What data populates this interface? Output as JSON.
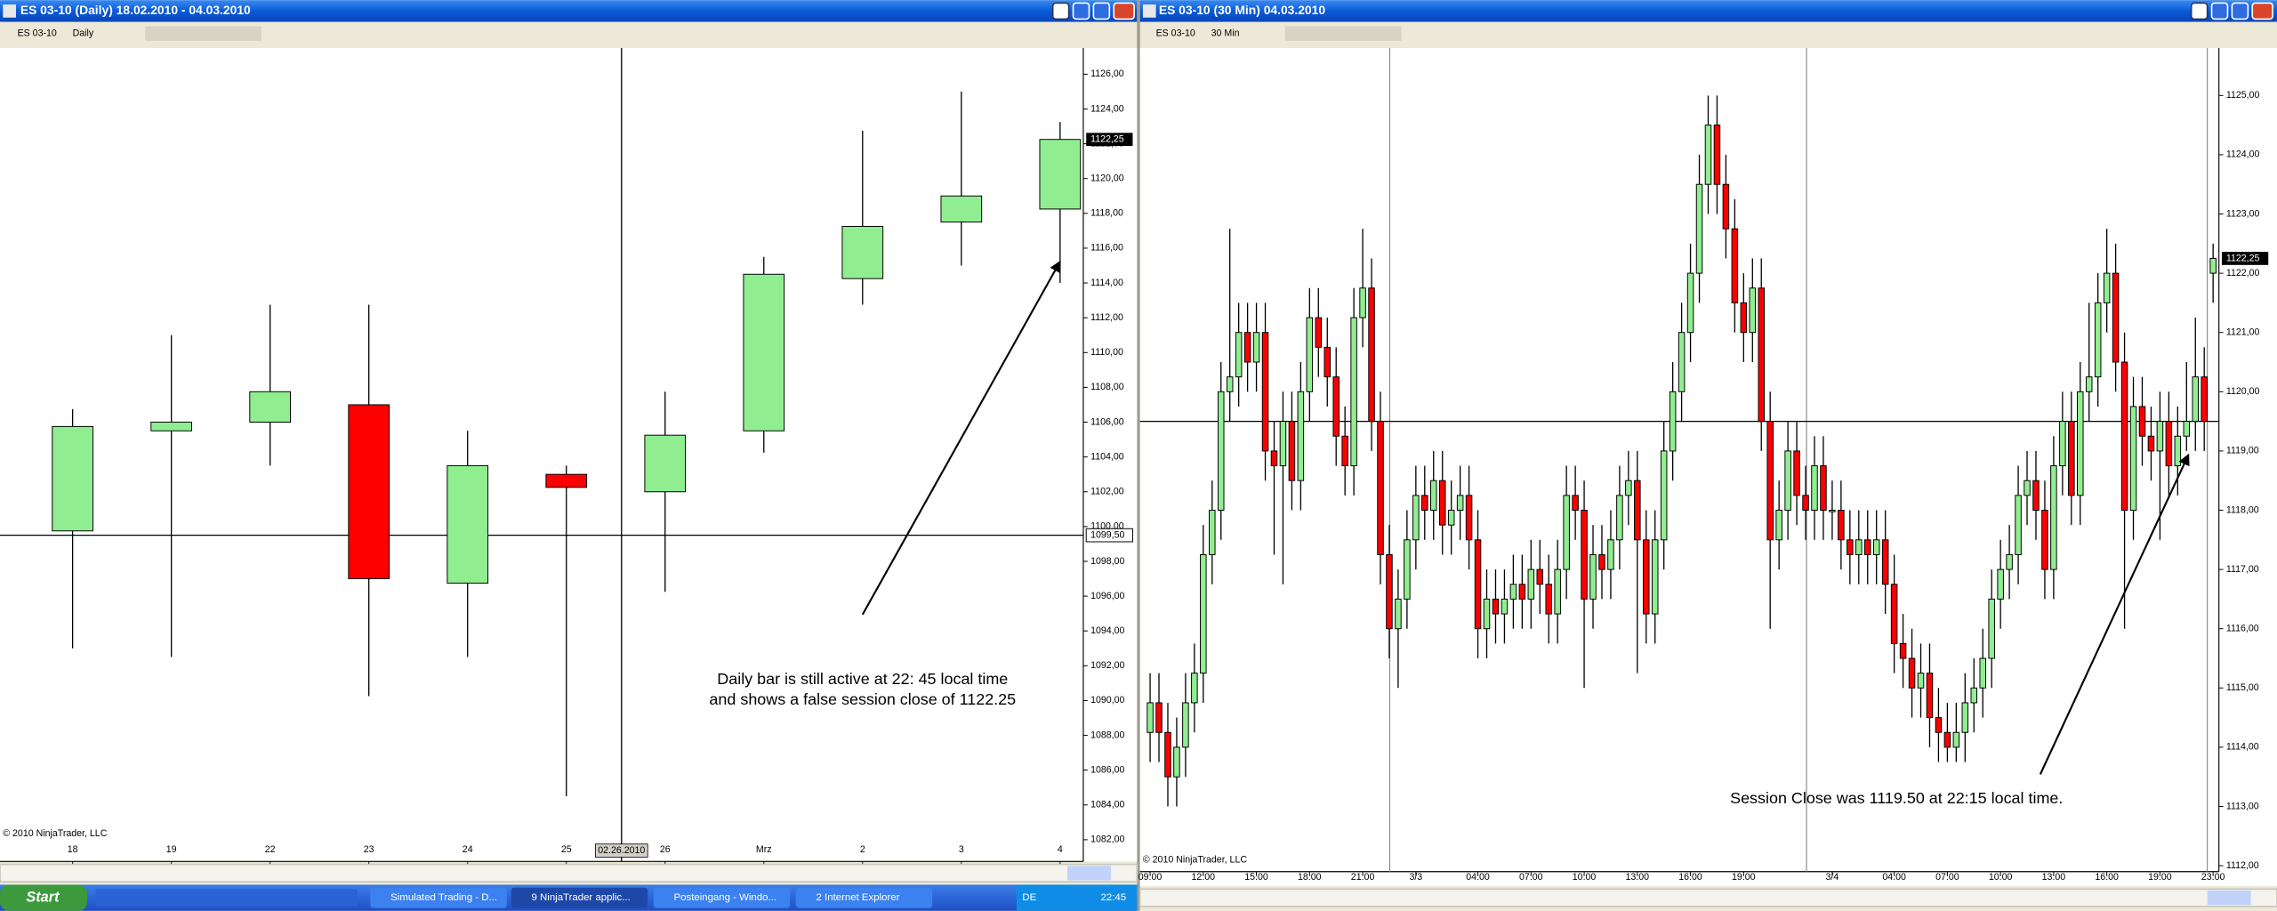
{
  "windows": [
    {
      "title": "ES 03-10 (Daily)  18.02.2010 - 04.03.2010",
      "toolbar": [
        "ES 03-10",
        "Daily"
      ],
      "copyright": "© 2010 NinjaTrader, LLC"
    },
    {
      "title": "ES 03-10 (30 Min)  04.03.2010",
      "toolbar": [
        "ES 03-10",
        "30 Min"
      ],
      "copyright": "© 2010 NinjaTrader, LLC"
    }
  ],
  "chart_data": [
    {
      "type": "candlestick",
      "categories": [
        "18",
        "19",
        "22",
        "23",
        "24",
        "25",
        "26",
        "Mrz",
        "2",
        "3",
        "4"
      ],
      "open": [
        1099.75,
        1105.5,
        1106.0,
        1107.0,
        1096.75,
        1103.0,
        1102.0,
        1105.5,
        1114.25,
        1117.5,
        1118.25
      ],
      "high": [
        1106.75,
        1111.0,
        1112.75,
        1112.75,
        1105.5,
        1103.5,
        1107.75,
        1115.5,
        1122.75,
        1125.0,
        1123.25
      ],
      "low": [
        1093.0,
        1092.5,
        1103.5,
        1090.25,
        1092.5,
        1084.5,
        1096.25,
        1104.25,
        1112.75,
        1115.0,
        1114.0
      ],
      "close": [
        1105.75,
        1106.0,
        1107.75,
        1097.0,
        1103.5,
        1102.25,
        1105.25,
        1114.5,
        1117.25,
        1119.0,
        1122.25
      ],
      "up_color": "#90ee90",
      "down_color": "#ff0000",
      "ylim": [
        1080.75,
        1127.5
      ],
      "yticks": [
        {
          "value": 1082,
          "label": "1082,00"
        },
        {
          "value": 1084,
          "label": "1084,00"
        },
        {
          "value": 1086,
          "label": "1086,00"
        },
        {
          "value": 1088,
          "label": "1088,00"
        },
        {
          "value": 1090,
          "label": "1090,00"
        },
        {
          "value": 1092,
          "label": "1092,00"
        },
        {
          "value": 1094,
          "label": "1094,00"
        },
        {
          "value": 1096,
          "label": "1096,00"
        },
        {
          "value": 1098,
          "label": "1098,00"
        },
        {
          "value": 1100,
          "label": "1100,00"
        },
        {
          "value": 1102,
          "label": "1102,00"
        },
        {
          "value": 1104,
          "label": "1104,00"
        },
        {
          "value": 1106,
          "label": "1106,00"
        },
        {
          "value": 1108,
          "label": "1108,00"
        },
        {
          "value": 1110,
          "label": "1110,00"
        },
        {
          "value": 1112,
          "label": "1112,00"
        },
        {
          "value": 1114,
          "label": "1114,00"
        },
        {
          "value": 1116,
          "label": "1116,00"
        },
        {
          "value": 1118,
          "label": "1118,00"
        },
        {
          "value": 1120,
          "label": "1120,00"
        },
        {
          "value": 1122,
          "label": "1122,00"
        },
        {
          "value": 1124,
          "label": "1124,00"
        },
        {
          "value": 1126,
          "label": "1126,00"
        }
      ],
      "last_price": {
        "value": 1122.25,
        "label": "1122,25"
      },
      "hline": {
        "value": 1099.5,
        "label": "1099,50"
      },
      "crosshair_label": "02.26.2010",
      "annotation": [
        "Daily bar is still active at 22: 45 local time",
        "and shows a false session close of 1122.25"
      ]
    },
    {
      "type": "candlestick",
      "categories": [
        "09:00",
        null,
        null,
        null,
        null,
        null,
        "12:00",
        null,
        null,
        null,
        null,
        null,
        "15:00",
        null,
        null,
        null,
        null,
        null,
        "18:00",
        null,
        null,
        null,
        null,
        null,
        "21:00",
        null,
        null,
        null,
        null,
        null,
        "3/3",
        null,
        null,
        null,
        null,
        null,
        null,
        "04:00",
        null,
        null,
        null,
        null,
        null,
        "07:00",
        null,
        null,
        null,
        null,
        null,
        "10:00",
        null,
        null,
        null,
        null,
        null,
        "13:00",
        null,
        null,
        null,
        null,
        null,
        "16:00",
        null,
        null,
        null,
        null,
        null,
        "19:00",
        null,
        null,
        null,
        null,
        null,
        null,
        null,
        null,
        null,
        "3/4",
        null,
        null,
        null,
        null,
        null,
        null,
        "04:00",
        null,
        null,
        null,
        null,
        null,
        "07:00",
        null,
        null,
        null,
        null,
        null,
        "10:00",
        null,
        null,
        null,
        null,
        null,
        "13:00",
        null,
        null,
        null,
        null,
        null,
        "16:00",
        null,
        null,
        null,
        null,
        null,
        "19:00",
        null,
        null,
        null,
        null,
        null,
        "23:00"
      ],
      "open": [
        1114.25,
        1114.75,
        1114.25,
        1113.5,
        1114.0,
        1114.75,
        1115.25,
        1117.25,
        1118.0,
        1120.0,
        1120.25,
        1121.0,
        1120.5,
        1121.0,
        1119.0,
        1118.75,
        1119.5,
        1118.5,
        1120.0,
        1121.25,
        1120.75,
        1120.25,
        1119.25,
        1118.75,
        1121.25,
        1121.75,
        1119.5,
        1117.25,
        1116.0,
        1116.5,
        1117.5,
        1118.25,
        1118.0,
        1118.5,
        1117.75,
        1118.0,
        1118.25,
        1117.5,
        1116.0,
        1116.5,
        1116.25,
        1116.5,
        1116.75,
        1116.5,
        1117.0,
        1116.75,
        1116.25,
        1117.0,
        1118.25,
        1118.0,
        1116.5,
        1117.25,
        1117.0,
        1117.5,
        1118.25,
        1118.5,
        1117.5,
        1116.25,
        1117.5,
        1119.0,
        1120.0,
        1121.0,
        1122.0,
        1123.5,
        1124.5,
        1123.5,
        1122.75,
        1121.5,
        1121.0,
        1121.75,
        1119.5,
        1117.5,
        1118.0,
        1119.0,
        1118.25,
        1118.0,
        1118.75,
        1118.0,
        1118.0,
        1117.5,
        1117.25,
        1117.5,
        1117.25,
        1117.5,
        1116.75,
        1115.75,
        1115.5,
        1115.0,
        1115.25,
        1114.5,
        1114.25,
        1114.0,
        1114.25,
        1114.75,
        1115.0,
        1115.5,
        1116.5,
        1117.0,
        1117.25,
        1118.25,
        1118.5,
        1118.0,
        1117.0,
        1118.75,
        1119.5,
        1118.25,
        1120.0,
        1120.25,
        1121.5,
        1122.0,
        1120.5,
        1118.0,
        1119.75,
        1119.25,
        1119.0,
        1119.5,
        1118.75,
        1119.25,
        1119.5,
        1120.25,
        1122.0
      ],
      "high": [
        1115.25,
        1115.25,
        1114.75,
        1114.5,
        1115.25,
        1115.75,
        1117.75,
        1118.5,
        1120.5,
        1122.75,
        1121.5,
        1121.5,
        1121.5,
        1121.5,
        1119.5,
        1120.0,
        1120.0,
        1120.5,
        1121.75,
        1121.75,
        1121.25,
        1120.75,
        1119.75,
        1121.75,
        1122.75,
        1122.25,
        1120.0,
        1117.75,
        1117.0,
        1118.0,
        1118.75,
        1118.75,
        1119.0,
        1119.0,
        1118.5,
        1118.75,
        1118.75,
        1118.0,
        1117.0,
        1117.0,
        1117.0,
        1117.25,
        1117.25,
        1117.5,
        1117.5,
        1117.25,
        1117.5,
        1118.75,
        1118.75,
        1118.5,
        1117.75,
        1117.75,
        1118.0,
        1118.75,
        1119.0,
        1119.0,
        1118.0,
        1118.0,
        1119.5,
        1120.5,
        1121.5,
        1122.5,
        1124.0,
        1125.0,
        1125.0,
        1124.0,
        1123.25,
        1122.0,
        1122.25,
        1122.25,
        1120.0,
        1118.5,
        1119.5,
        1119.5,
        1118.75,
        1119.25,
        1119.25,
        1118.5,
        1118.5,
        1118.0,
        1118.0,
        1118.0,
        1118.0,
        1118.0,
        1117.25,
        1116.25,
        1116.0,
        1115.75,
        1115.75,
        1115.0,
        1114.75,
        1114.75,
        1115.25,
        1115.5,
        1116.0,
        1117.0,
        1117.5,
        1117.75,
        1118.75,
        1119.0,
        1119.0,
        1118.5,
        1119.25,
        1120.0,
        1120.0,
        1120.5,
        1121.5,
        1122.0,
        1122.75,
        1122.5,
        1121.0,
        1120.25,
        1120.25,
        1119.75,
        1120.0,
        1120.0,
        1119.75,
        1120.5,
        1121.25,
        1120.75,
        1122.5
      ],
      "low": [
        1113.75,
        1113.75,
        1113.0,
        1113.0,
        1113.5,
        1114.25,
        1114.75,
        1116.75,
        1117.5,
        1119.5,
        1119.75,
        1120.0,
        1120.0,
        1118.5,
        1117.25,
        1116.75,
        1118.0,
        1118.0,
        1119.5,
        1120.25,
        1119.75,
        1118.75,
        1118.25,
        1118.25,
        1120.75,
        1119.0,
        1116.75,
        1115.5,
        1115.0,
        1116.0,
        1117.0,
        1117.5,
        1117.5,
        1117.25,
        1117.25,
        1117.5,
        1117.0,
        1115.5,
        1115.5,
        1115.75,
        1115.75,
        1116.0,
        1116.0,
        1116.0,
        1116.25,
        1115.75,
        1115.75,
        1116.5,
        1117.5,
        1115.0,
        1116.0,
        1116.5,
        1116.5,
        1117.0,
        1117.75,
        1115.25,
        1115.75,
        1115.75,
        1117.0,
        1118.5,
        1119.5,
        1120.5,
        1121.5,
        1123.0,
        1123.0,
        1122.25,
        1121.0,
        1120.5,
        1120.5,
        1119.0,
        1116.0,
        1117.0,
        1117.5,
        1117.75,
        1117.5,
        1117.5,
        1117.5,
        1117.5,
        1117.0,
        1116.75,
        1116.75,
        1116.75,
        1116.75,
        1116.25,
        1115.25,
        1115.0,
        1114.5,
        1114.5,
        1114.0,
        1113.75,
        1113.75,
        1113.75,
        1113.75,
        1114.25,
        1114.5,
        1115.0,
        1116.0,
        1116.5,
        1116.75,
        1117.75,
        1117.5,
        1116.5,
        1116.5,
        1118.25,
        1117.75,
        1117.75,
        1119.5,
        1119.75,
        1121.0,
        1120.0,
        1116.0,
        1117.5,
        1118.75,
        1118.5,
        1117.5,
        1118.25,
        1118.25,
        1119.0,
        1119.0,
        1119.0,
        1121.5
      ],
      "close": [
        1114.75,
        1114.25,
        1113.5,
        1114.0,
        1114.75,
        1115.25,
        1117.25,
        1118.0,
        1120.0,
        1120.25,
        1121.0,
        1120.5,
        1121.0,
        1119.0,
        1118.75,
        1119.5,
        1118.5,
        1120.0,
        1121.25,
        1120.75,
        1120.25,
        1119.25,
        1118.75,
        1121.25,
        1121.75,
        1119.5,
        1117.25,
        1116.0,
        1116.5,
        1117.5,
        1118.25,
        1118.0,
        1118.5,
        1117.75,
        1118.0,
        1118.25,
        1117.5,
        1116.0,
        1116.5,
        1116.25,
        1116.5,
        1116.75,
        1116.5,
        1117.0,
        1116.75,
        1116.25,
        1117.0,
        1118.25,
        1118.0,
        1116.5,
        1117.25,
        1117.0,
        1117.5,
        1118.25,
        1118.5,
        1117.5,
        1116.25,
        1117.5,
        1119.0,
        1120.0,
        1121.0,
        1122.0,
        1123.5,
        1124.5,
        1123.5,
        1122.75,
        1121.5,
        1121.0,
        1121.75,
        1119.5,
        1117.5,
        1118.0,
        1119.0,
        1118.25,
        1118.0,
        1118.75,
        1118.0,
        1118.0,
        1117.5,
        1117.25,
        1117.5,
        1117.25,
        1117.5,
        1116.75,
        1115.75,
        1115.5,
        1115.0,
        1115.25,
        1114.5,
        1114.25,
        1114.0,
        1114.25,
        1114.75,
        1115.0,
        1115.5,
        1116.5,
        1117.0,
        1117.25,
        1118.25,
        1118.5,
        1118.0,
        1117.0,
        1118.75,
        1119.5,
        1118.25,
        1120.0,
        1120.25,
        1121.5,
        1122.0,
        1120.5,
        1118.0,
        1119.75,
        1119.25,
        1119.0,
        1119.5,
        1118.75,
        1119.25,
        1119.5,
        1120.25,
        1119.5,
        1122.25
      ],
      "up_color": "#90ee90",
      "down_color": "#ff0000",
      "ylim": [
        1111.9,
        1125.8
      ],
      "yticks": [
        {
          "value": 1112,
          "label": "1112,00"
        },
        {
          "value": 1113,
          "label": "1113,00"
        },
        {
          "value": 1114,
          "label": "1114,00"
        },
        {
          "value": 1115,
          "label": "1115,00"
        },
        {
          "value": 1116,
          "label": "1116,00"
        },
        {
          "value": 1117,
          "label": "1117,00"
        },
        {
          "value": 1118,
          "label": "1118,00"
        },
        {
          "value": 1119,
          "label": "1119,00"
        },
        {
          "value": 1120,
          "label": "1120,00"
        },
        {
          "value": 1121,
          "label": "1121,00"
        },
        {
          "value": 1122,
          "label": "1122,00"
        },
        {
          "value": 1123,
          "label": "1123,00"
        },
        {
          "value": 1124,
          "label": "1124,00"
        },
        {
          "value": 1125,
          "label": "1125,00"
        }
      ],
      "last_price": {
        "value": 1122.25,
        "label": "1122,25"
      },
      "hline": 1119.5,
      "annotation": [
        "Session Close was 1119.50 at 22:15 local time."
      ]
    }
  ],
  "taskbar": {
    "start": "Start",
    "items": [
      "Simulated Trading - D...",
      "9 NinjaTrader applic...",
      "Posteingang - Windo...",
      "2 Internet Explorer"
    ],
    "language": "DE",
    "clock": "22:45"
  }
}
